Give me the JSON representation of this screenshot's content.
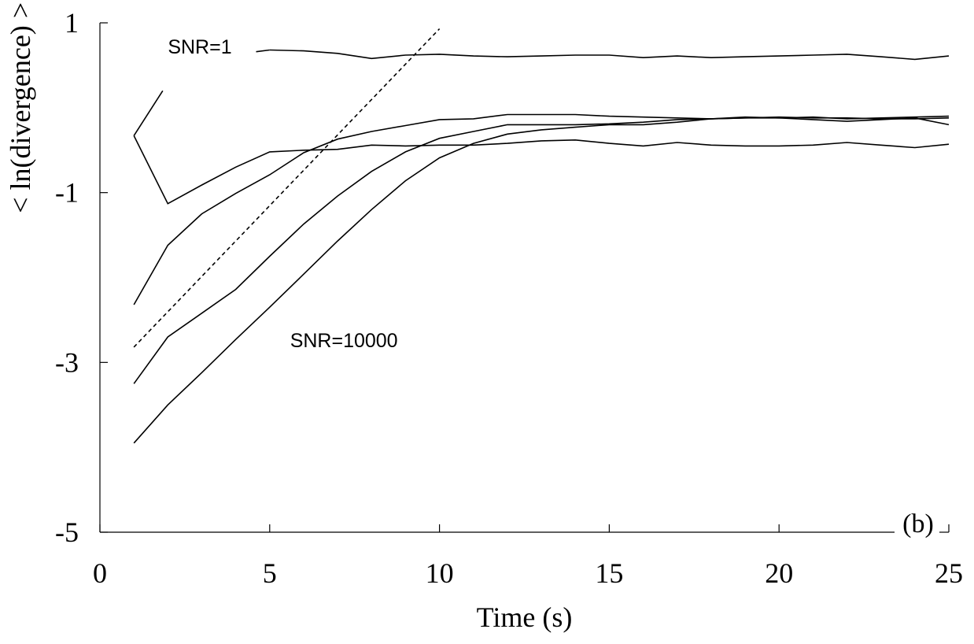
{
  "chart_data": {
    "type": "line",
    "xlabel": "Time (s)",
    "ylabel": "< ln(divergence) >",
    "panel_label": "(b)",
    "xlim": [
      0,
      25
    ],
    "ylim": [
      -5,
      1
    ],
    "x_ticks": [
      "0",
      "5",
      "10",
      "15",
      "20",
      "25"
    ],
    "y_ticks": [
      "1",
      "-1",
      "-3",
      "-5"
    ],
    "grid": false,
    "x": [
      1,
      2,
      3,
      4,
      5,
      6,
      7,
      8,
      9,
      10,
      11,
      12,
      13,
      14,
      15,
      16,
      17,
      18,
      19,
      20,
      21,
      22,
      23,
      24,
      25
    ],
    "series": [
      {
        "values": [
          -0.33,
          -1.13,
          -0.91,
          -0.7,
          -0.52,
          -0.5,
          -0.49,
          -0.44,
          -0.45,
          -0.44,
          -0.44,
          -0.42,
          -0.39,
          -0.38,
          -0.42,
          -0.45,
          -0.41,
          -0.44,
          -0.45,
          -0.45,
          -0.44,
          -0.41,
          -0.44,
          -0.47,
          -0.43
        ]
      },
      {
        "values": [
          -2.32,
          -1.62,
          -1.25,
          -1.01,
          -0.79,
          -0.53,
          -0.37,
          -0.28,
          -0.21,
          -0.14,
          -0.13,
          -0.08,
          -0.08,
          -0.08,
          -0.1,
          -0.11,
          -0.12,
          -0.13,
          -0.12,
          -0.12,
          -0.11,
          -0.13,
          -0.12,
          -0.11,
          -0.1
        ]
      },
      {
        "values": [
          -3.25,
          -2.7,
          -2.42,
          -2.14,
          -1.75,
          -1.37,
          -1.04,
          -0.75,
          -0.52,
          -0.36,
          -0.28,
          -0.2,
          -0.2,
          -0.2,
          -0.19,
          -0.17,
          -0.14,
          -0.13,
          -0.12,
          -0.11,
          -0.12,
          -0.12,
          -0.13,
          -0.13,
          -0.12
        ]
      },
      {
        "values": [
          -3.95,
          -3.5,
          -3.12,
          -2.73,
          -2.35,
          -1.96,
          -1.57,
          -1.2,
          -0.86,
          -0.59,
          -0.42,
          -0.31,
          -0.26,
          -0.23,
          -0.2,
          -0.2,
          -0.17,
          -0.13,
          -0.11,
          -0.12,
          -0.14,
          -0.16,
          -0.14,
          -0.12,
          -0.2
        ]
      },
      {
        "values": [
          null,
          null,
          null,
          null,
          0.68,
          0.67,
          0.64,
          0.58,
          0.62,
          0.63,
          0.61,
          0.6,
          0.61,
          0.62,
          0.62,
          0.59,
          0.61,
          0.59,
          0.6,
          0.61,
          0.62,
          0.63,
          0.6,
          0.57,
          0.61
        ]
      }
    ],
    "reference_line": {
      "style": "dotted",
      "x": [
        1,
        10
      ],
      "y": [
        -2.82,
        0.93
      ]
    },
    "annotations": [
      {
        "text": "SNR=1",
        "x": 2.0,
        "y": 0.64,
        "leader": {
          "x": [
            1,
            1.85
          ],
          "y": [
            -0.33,
            0.2
          ]
        },
        "leader2": {
          "x": [
            4.6,
            5
          ],
          "y": [
            0.66,
            0.68
          ]
        }
      },
      {
        "text": "SNR=10000",
        "x": 5.6,
        "y": -2.82
      }
    ]
  }
}
